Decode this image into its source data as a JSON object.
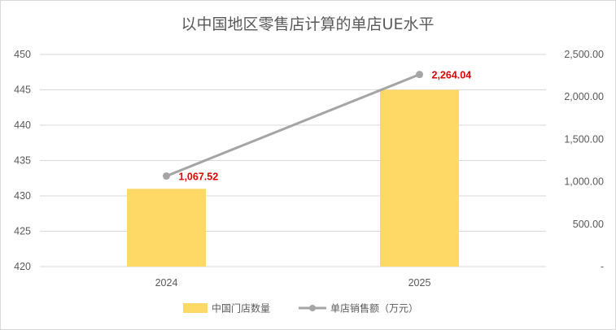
{
  "chart_data": {
    "type": "bar",
    "title": "以中国地区零售店计算的单店UE水平",
    "categories": [
      "2024",
      "2025"
    ],
    "series": [
      {
        "name": "中国门店数量",
        "type": "bar",
        "axis": "left",
        "color": "#ffd966",
        "values": [
          431,
          445
        ]
      },
      {
        "name": "单店销售额（万元）",
        "type": "line",
        "axis": "right",
        "color": "#a5a5a5",
        "values": [
          1067.52,
          2264.04
        ],
        "data_labels": [
          "1,067.52",
          "2,264.04"
        ],
        "label_color": "#e00000"
      }
    ],
    "y_left": {
      "min": 420,
      "max": 450,
      "ticks": [
        420,
        425,
        430,
        435,
        440,
        445,
        450
      ],
      "tick_labels": [
        "420",
        "425",
        "430",
        "435",
        "440",
        "445",
        "450"
      ]
    },
    "y_right": {
      "min": 0,
      "max": 2500,
      "ticks": [
        0,
        500,
        1000,
        1500,
        2000,
        2500
      ],
      "tick_labels": [
        "-",
        "500.00",
        "1,000.00",
        "1,500.00",
        "2,000.00",
        "2,500.00"
      ]
    },
    "grid": true,
    "legend": "bottom-center",
    "gridline_color": "#d9d9d9"
  }
}
